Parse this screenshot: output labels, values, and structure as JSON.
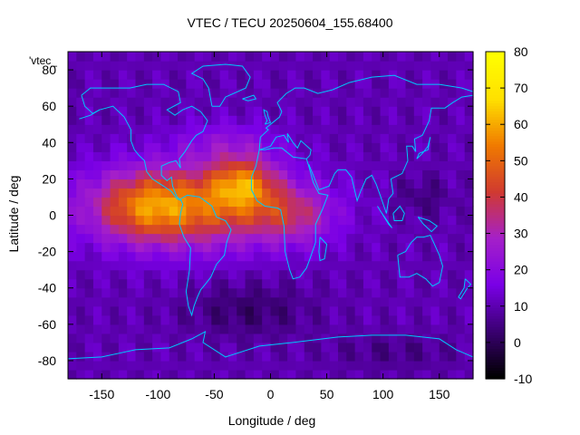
{
  "title": "VTEC / TECU 20250604_155.68400",
  "key_label": "'vtec_",
  "chart_data": {
    "type": "heatmap",
    "title": "VTEC / TECU 20250604_155.68400",
    "xlabel": "Longitude / deg",
    "ylabel": "Latitude / deg",
    "xlim": [
      -180,
      180
    ],
    "ylim": [
      -90,
      90
    ],
    "x_ticks": [
      -150,
      -100,
      -50,
      0,
      50,
      100,
      150
    ],
    "y_ticks": [
      -80,
      -60,
      -40,
      -20,
      0,
      20,
      40,
      60,
      80
    ],
    "colorbar": {
      "min": -10,
      "max": 80,
      "ticks": [
        -10,
        0,
        10,
        20,
        30,
        40,
        50,
        60,
        70,
        80
      ]
    },
    "colormap": [
      "#000000",
      "#3a0072",
      "#7a00e6",
      "#a520c8",
      "#d03a30",
      "#f07a00",
      "#ffe000",
      "#ffff00"
    ],
    "peak": {
      "lon": -30,
      "lat": 20,
      "value": 78
    },
    "grid": false
  }
}
